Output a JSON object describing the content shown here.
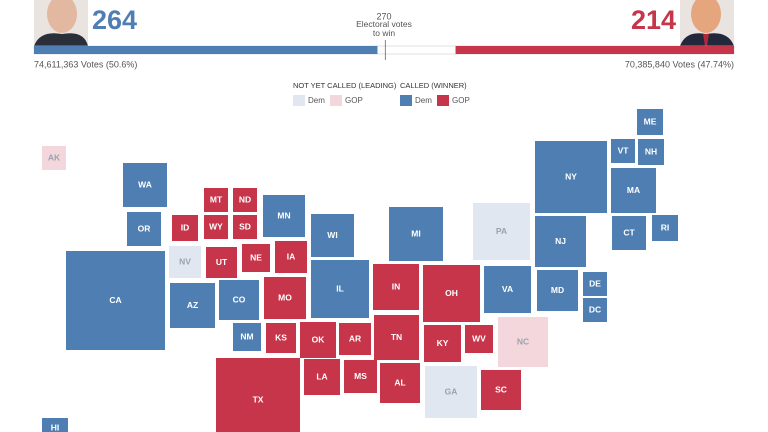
{
  "header": {
    "left": {
      "electoral_votes": 264,
      "popular_votes": "74,611,363 Votes (50.6%)",
      "color": "#4f7fb2"
    },
    "right": {
      "electoral_votes": 214,
      "popular_votes": "70,385,840 Votes (47.74%)",
      "color": "#c6354a"
    },
    "threshold": {
      "value": 270,
      "label": "Electoral votes to win"
    }
  },
  "legend": {
    "groups": [
      {
        "title": "NOT YET CALLED (LEADING)",
        "items": [
          {
            "label": "Dem",
            "status": "lean-dem"
          },
          {
            "label": "GOP",
            "status": "lean-gop"
          }
        ]
      },
      {
        "title": "CALLED (WINNER)",
        "items": [
          {
            "label": "Dem",
            "status": "dem"
          },
          {
            "label": "GOP",
            "status": "gop"
          }
        ]
      }
    ]
  },
  "colors": {
    "dem": "#4f7fb2",
    "gop": "#c6354a",
    "lean-dem": "#e0e7f0",
    "lean-gop": "#f4d7dc"
  },
  "states": [
    {
      "label": "AK",
      "status": "lean-gop"
    },
    {
      "label": "WA",
      "status": "dem"
    },
    {
      "label": "OR",
      "status": "dem"
    },
    {
      "label": "CA",
      "status": "dem"
    },
    {
      "label": "NV",
      "status": "lean-dem"
    },
    {
      "label": "AZ",
      "status": "dem"
    },
    {
      "label": "MT",
      "status": "gop"
    },
    {
      "label": "ND",
      "status": "gop"
    },
    {
      "label": "ID",
      "status": "gop"
    },
    {
      "label": "WY",
      "status": "gop"
    },
    {
      "label": "SD",
      "status": "gop"
    },
    {
      "label": "MN",
      "status": "dem"
    },
    {
      "label": "UT",
      "status": "gop"
    },
    {
      "label": "NE",
      "status": "gop"
    },
    {
      "label": "IA",
      "status": "gop"
    },
    {
      "label": "CO",
      "status": "dem"
    },
    {
      "label": "MO",
      "status": "gop"
    },
    {
      "label": "KS",
      "status": "gop"
    },
    {
      "label": "NM",
      "status": "dem"
    },
    {
      "label": "OK",
      "status": "gop"
    },
    {
      "label": "AR",
      "status": "gop"
    },
    {
      "label": "TX",
      "status": "gop"
    },
    {
      "label": "LA",
      "status": "gop"
    },
    {
      "label": "MS",
      "status": "gop"
    },
    {
      "label": "AL",
      "status": "gop"
    },
    {
      "label": "WI",
      "status": "dem"
    },
    {
      "label": "IL",
      "status": "dem"
    },
    {
      "label": "MI",
      "status": "dem"
    },
    {
      "label": "IN",
      "status": "gop"
    },
    {
      "label": "OH",
      "status": "gop"
    },
    {
      "label": "TN",
      "status": "gop"
    },
    {
      "label": "KY",
      "status": "gop"
    },
    {
      "label": "WV",
      "status": "gop"
    },
    {
      "label": "GA",
      "status": "lean-dem"
    },
    {
      "label": "SC",
      "status": "gop"
    },
    {
      "label": "PA",
      "status": "lean-dem"
    },
    {
      "label": "VA",
      "status": "dem"
    },
    {
      "label": "NC",
      "status": "lean-gop"
    },
    {
      "label": "NY",
      "status": "dem"
    },
    {
      "label": "NJ",
      "status": "dem"
    },
    {
      "label": "MD",
      "status": "dem"
    },
    {
      "label": "DE",
      "status": "dem"
    },
    {
      "label": "DC",
      "status": "dem"
    },
    {
      "label": "VT",
      "status": "dem"
    },
    {
      "label": "NH",
      "status": "dem"
    },
    {
      "label": "ME",
      "status": "dem"
    },
    {
      "label": "MA",
      "status": "dem"
    },
    {
      "label": "CT",
      "status": "dem"
    },
    {
      "label": "RI",
      "status": "dem"
    },
    {
      "label": "HI",
      "status": "dem"
    }
  ]
}
